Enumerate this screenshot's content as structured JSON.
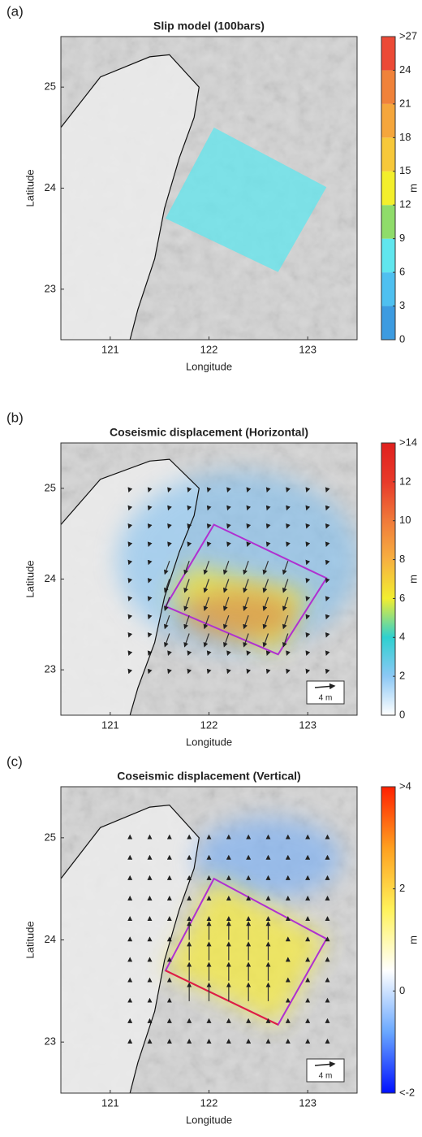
{
  "chart_data": [
    {
      "type": "map",
      "panel_label": "(a)",
      "title": "Slip model (100bars)",
      "x_label": "Longitude",
      "y_label": "Latitude",
      "xlim": [
        120.5,
        123.5
      ],
      "ylim": [
        22.5,
        25.5
      ],
      "xticks": [
        121,
        122,
        123
      ],
      "yticks": [
        23,
        24,
        25
      ],
      "colorbar": {
        "label": "m",
        "lim": [
          0,
          27
        ],
        "discrete": true,
        "ticks": [
          0,
          3,
          6,
          9,
          12,
          15,
          18,
          21,
          24,
          {
            "value": 27,
            "label": ">27"
          }
        ],
        "colors": [
          "#3d9be0",
          "#4fc0f0",
          "#60e6ee",
          "#8fdc6a",
          "#f3ef2c",
          "#f7c83a",
          "#f5a63c",
          "#f0823a",
          "#ec4a36"
        ]
      }
    },
    {
      "type": "map",
      "panel_label": "(b)",
      "title": "Coseismic displacement (Horizontal)",
      "x_label": "Longitude",
      "y_label": "Latitude",
      "xlim": [
        120.5,
        123.5
      ],
      "ylim": [
        22.5,
        25.5
      ],
      "xticks": [
        121,
        122,
        123
      ],
      "yticks": [
        23,
        24,
        25
      ],
      "scale_label": "4 m",
      "colorbar": {
        "label": "m",
        "lim": [
          0,
          14
        ],
        "discrete": false,
        "ticks": [
          0,
          2,
          4,
          6,
          8,
          10,
          12,
          {
            "value": 14,
            "label": ">14"
          }
        ],
        "colors": [
          "#ffffff",
          "#8cc8f5",
          "#2ed0d0",
          "#f2ee30",
          "#f7b040",
          "#f07a3a",
          "#e83a2a",
          "#e0201e"
        ]
      }
    },
    {
      "type": "map",
      "panel_label": "(c)",
      "title": "Coseismic displacement (Vertical)",
      "x_label": "Longitude",
      "y_label": "Latitude",
      "xlim": [
        120.5,
        123.5
      ],
      "ylim": [
        22.5,
        25.5
      ],
      "xticks": [
        121,
        122,
        123
      ],
      "yticks": [
        23,
        24,
        25
      ],
      "scale_label": "4 m",
      "colorbar": {
        "label": "m",
        "lim": [
          -2,
          4
        ],
        "discrete": false,
        "ticks": [
          {
            "value": -2,
            "label": "<-2"
          },
          0,
          2,
          {
            "value": 4,
            "label": ">4"
          }
        ],
        "colors": [
          "#0010ff",
          "#6aa8ff",
          "#ffffff",
          "#fff25a",
          "#ffa020",
          "#ff2000"
        ]
      }
    }
  ]
}
